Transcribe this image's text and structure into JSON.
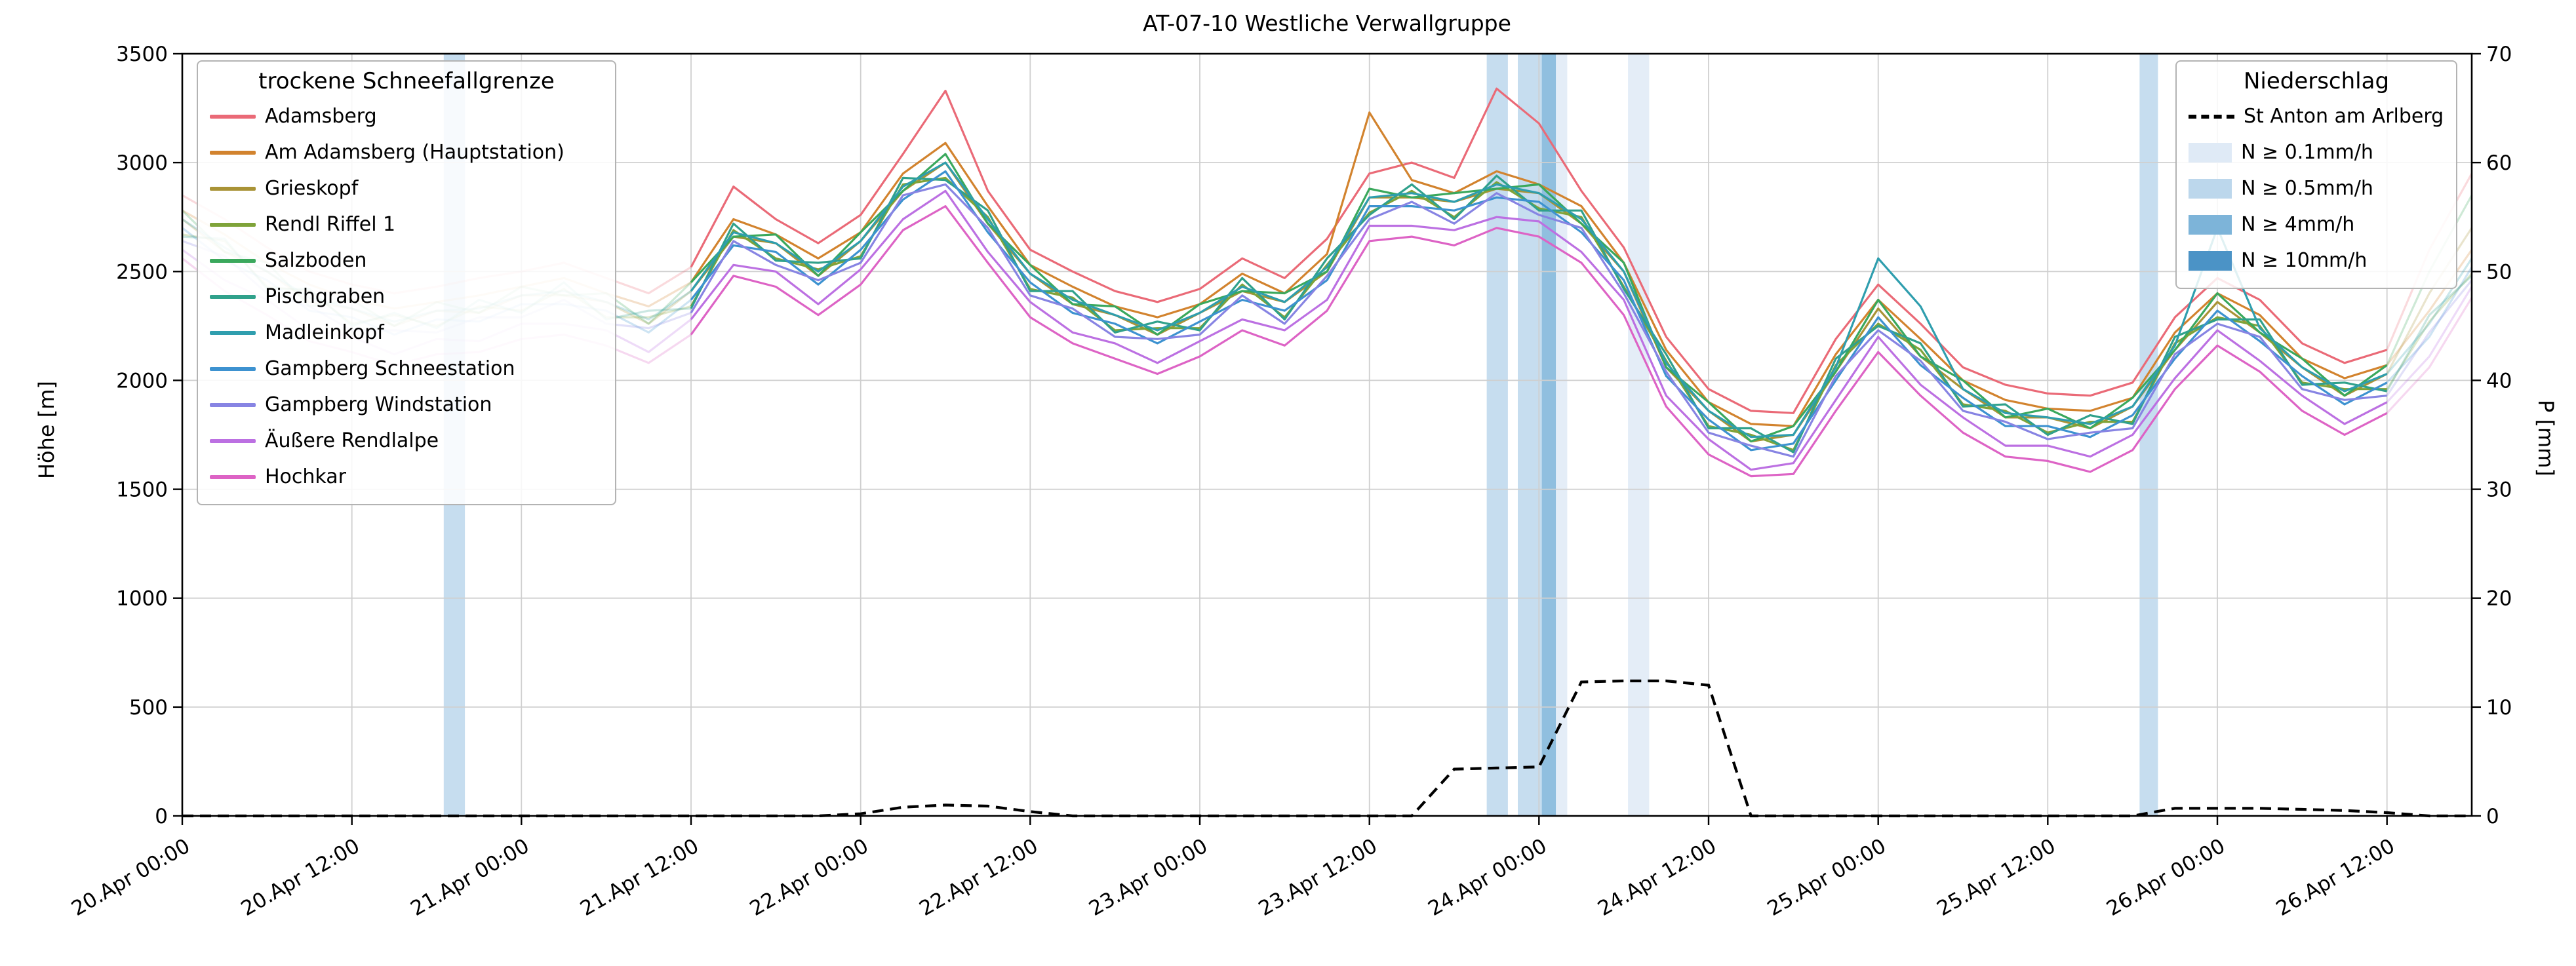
{
  "title": "AT-07-10 Westliche Verwallgruppe",
  "legend_stations": {
    "title": "trockene Schneefallgrenze"
  },
  "legend_precip": {
    "title": "Niederschlag",
    "line_label": "St Anton am Arlberg",
    "levels": [
      {
        "label": "N ≥ 0.1mm/h",
        "color": "#dfeaf6"
      },
      {
        "label": "N ≥ 0.5mm/h",
        "color": "#bcd7ec"
      },
      {
        "label": "N ≥ 4mm/h",
        "color": "#7db4d9"
      },
      {
        "label": "N ≥ 10mm/h",
        "color": "#4b93c6"
      }
    ]
  },
  "chart_data": {
    "type": "line",
    "title": "AT-07-10 Westliche Verwallgruppe",
    "x_range": [
      0,
      162
    ],
    "x_unit": "hours since 20.Apr 00:00",
    "x_tick_hours": [
      0,
      12,
      24,
      36,
      48,
      60,
      72,
      84,
      96,
      108,
      120,
      132,
      144,
      156
    ],
    "x_tick_labels": [
      "20.Apr 00:00",
      "20.Apr 12:00",
      "21.Apr 00:00",
      "21.Apr 12:00",
      "22.Apr 00:00",
      "22.Apr 12:00",
      "23.Apr 00:00",
      "23.Apr 12:00",
      "24.Apr 00:00",
      "24.Apr 12:00",
      "25.Apr 00:00",
      "25.Apr 12:00",
      "26.Apr 00:00",
      "26.Apr 12:00"
    ],
    "y_left": {
      "label": "Höhe [m]",
      "range": [
        0,
        3500
      ],
      "ticks": [
        0,
        500,
        1000,
        1500,
        2000,
        2500,
        3000,
        3500
      ]
    },
    "y_right": {
      "label": "P [mm]",
      "range": [
        0,
        70
      ],
      "ticks": [
        0,
        10,
        20,
        30,
        40,
        50,
        60,
        70
      ]
    },
    "grid": true,
    "fade_before_hour": 36,
    "fade_after_hour": 156,
    "x_hours": [
      0,
      3,
      6,
      9,
      12,
      15,
      18,
      21,
      24,
      27,
      30,
      33,
      36,
      39,
      42,
      45,
      48,
      51,
      54,
      57,
      60,
      63,
      66,
      69,
      72,
      75,
      78,
      81,
      84,
      87,
      90,
      93,
      96,
      99,
      102,
      105,
      108,
      111,
      114,
      117,
      120,
      123,
      126,
      129,
      132,
      135,
      138,
      141,
      144,
      147,
      150,
      153,
      156,
      159,
      162
    ],
    "series": [
      {
        "name": "Adamsberg",
        "color": "#ea6a77",
        "values": [
          2850,
          2740,
          2610,
          2500,
          2440,
          2400,
          2430,
          2470,
          2500,
          2540,
          2470,
          2400,
          2520,
          2890,
          2740,
          2630,
          2760,
          3040,
          3330,
          2870,
          2600,
          2500,
          2410,
          2360,
          2420,
          2560,
          2470,
          2650,
          2950,
          3000,
          2930,
          3340,
          3180,
          2870,
          2610,
          2200,
          1960,
          1860,
          1850,
          2190,
          2440,
          2260,
          2060,
          1980,
          1940,
          1930,
          1990,
          2290,
          2470,
          2370,
          2170,
          2080,
          2140,
          2600,
          2950
        ]
      },
      {
        "name": "Am Adamsberg (Hauptstation)",
        "color": "#d2832e",
        "values": [
          2780,
          2670,
          2540,
          2440,
          2370,
          2330,
          2360,
          2390,
          2430,
          2470,
          2400,
          2340,
          2450,
          2740,
          2670,
          2560,
          2680,
          2950,
          3090,
          2800,
          2530,
          2430,
          2340,
          2290,
          2350,
          2490,
          2400,
          2580,
          3230,
          2920,
          2860,
          2960,
          2900,
          2800,
          2540,
          2140,
          1900,
          1800,
          1790,
          2120,
          2370,
          2190,
          2000,
          1910,
          1870,
          1860,
          1920,
          2220,
          2400,
          2300,
          2100,
          2010,
          2070,
          2320,
          2600
        ]
      },
      {
        "name": "Grieskopf",
        "color": "#a99336",
        "values": [
          2740,
          2590,
          2500,
          2360,
          2330,
          2250,
          2320,
          2310,
          2390,
          2390,
          2360,
          2260,
          2410,
          2660,
          2630,
          2480,
          2640,
          2870,
          3000,
          2720,
          2490,
          2350,
          2300,
          2210,
          2310,
          2410,
          2360,
          2500,
          2840,
          2840,
          2820,
          2880,
          2860,
          2720,
          2500,
          2060,
          1860,
          1720,
          1750,
          2040,
          2330,
          2110,
          1960,
          1830,
          1830,
          1780,
          1880,
          2140,
          2360,
          2220,
          2060,
          1930,
          2030,
          2400,
          2700
        ]
      },
      {
        "name": "Rendl Riffel 1",
        "color": "#7fa339",
        "values": [
          2670,
          2640,
          2430,
          2410,
          2260,
          2300,
          2250,
          2340,
          2320,
          2420,
          2290,
          2290,
          2340,
          2690,
          2560,
          2510,
          2570,
          2900,
          2930,
          2750,
          2420,
          2380,
          2230,
          2240,
          2240,
          2440,
          2290,
          2530,
          2770,
          2870,
          2750,
          2910,
          2790,
          2750,
          2430,
          2090,
          1790,
          1750,
          1680,
          2070,
          2260,
          2140,
          1890,
          1860,
          1760,
          1810,
          1810,
          2170,
          2290,
          2250,
          1990,
          1960,
          1960,
          2270,
          2490
        ]
      },
      {
        "name": "Salzboden",
        "color": "#3aa85c",
        "values": [
          2780,
          2590,
          2540,
          2340,
          2370,
          2250,
          2360,
          2310,
          2430,
          2390,
          2400,
          2260,
          2450,
          2660,
          2670,
          2480,
          2680,
          2870,
          3040,
          2720,
          2530,
          2350,
          2340,
          2210,
          2350,
          2410,
          2400,
          2500,
          2880,
          2840,
          2860,
          2880,
          2900,
          2720,
          2540,
          2060,
          1900,
          1720,
          1790,
          2040,
          2370,
          2110,
          2000,
          1830,
          1870,
          1780,
          1920,
          2140,
          2400,
          2220,
          2100,
          1930,
          2070,
          2500,
          2850
        ]
      },
      {
        "name": "Pischgraben",
        "color": "#30a18b",
        "values": [
          2660,
          2650,
          2420,
          2420,
          2250,
          2310,
          2240,
          2370,
          2310,
          2450,
          2280,
          2320,
          2330,
          2720,
          2550,
          2540,
          2560,
          2930,
          2920,
          2780,
          2410,
          2410,
          2220,
          2270,
          2230,
          2470,
          2280,
          2560,
          2760,
          2900,
          2740,
          2940,
          2780,
          2780,
          2420,
          2120,
          1780,
          1780,
          1670,
          2100,
          2250,
          2170,
          1880,
          1890,
          1750,
          1840,
          1800,
          2200,
          2280,
          2280,
          1980,
          1990,
          1950,
          2300,
          2480
        ]
      },
      {
        "name": "Madleinkopf",
        "color": "#2f9eae",
        "values": [
          2740,
          2610,
          2500,
          2380,
          2330,
          2270,
          2320,
          2330,
          2390,
          2410,
          2360,
          2280,
          2410,
          2680,
          2630,
          2500,
          2640,
          2890,
          3000,
          2740,
          2490,
          2370,
          2300,
          2230,
          2310,
          2430,
          2360,
          2520,
          2840,
          2860,
          2820,
          2900,
          2860,
          2740,
          2500,
          2080,
          1860,
          1740,
          1750,
          2060,
          2560,
          2340,
          1960,
          1850,
          1830,
          1800,
          1880,
          2160,
          2700,
          2240,
          2060,
          1950,
          2030,
          2260,
          2560
        ]
      },
      {
        "name": "Gampberg Schneestation",
        "color": "#3d92d0",
        "values": [
          2700,
          2550,
          2460,
          2320,
          2290,
          2210,
          2280,
          2270,
          2350,
          2350,
          2320,
          2220,
          2370,
          2620,
          2590,
          2440,
          2600,
          2830,
          2960,
          2680,
          2450,
          2310,
          2260,
          2170,
          2270,
          2370,
          2320,
          2460,
          2800,
          2800,
          2780,
          2840,
          2820,
          2680,
          2460,
          2020,
          1820,
          1680,
          1710,
          2000,
          2290,
          2070,
          1920,
          1790,
          1790,
          1740,
          1840,
          2100,
          2320,
          2180,
          2020,
          1890,
          1990,
          2200,
          2520
        ]
      },
      {
        "name": "Gampberg Windstation",
        "color": "#8784e3",
        "values": [
          2640,
          2570,
          2400,
          2340,
          2230,
          2230,
          2220,
          2290,
          2290,
          2370,
          2260,
          2240,
          2310,
          2640,
          2530,
          2460,
          2540,
          2850,
          2900,
          2700,
          2390,
          2330,
          2200,
          2190,
          2210,
          2390,
          2260,
          2480,
          2740,
          2820,
          2720,
          2860,
          2760,
          2700,
          2400,
          2040,
          1760,
          1700,
          1650,
          2020,
          2230,
          2090,
          1860,
          1810,
          1730,
          1760,
          1780,
          2120,
          2260,
          2200,
          1960,
          1910,
          1930,
          2220,
          2460
        ]
      },
      {
        "name": "Äußere Rendlalpe",
        "color": "#bc70e2",
        "values": [
          2600,
          2460,
          2370,
          2230,
          2200,
          2120,
          2190,
          2180,
          2260,
          2260,
          2230,
          2130,
          2280,
          2530,
          2500,
          2350,
          2510,
          2740,
          2870,
          2590,
          2360,
          2220,
          2170,
          2080,
          2180,
          2280,
          2230,
          2370,
          2710,
          2710,
          2690,
          2750,
          2730,
          2590,
          2370,
          1930,
          1730,
          1590,
          1620,
          1910,
          2200,
          1980,
          1830,
          1700,
          1700,
          1650,
          1750,
          2010,
          2230,
          2090,
          1930,
          1800,
          1900,
          2110,
          2430
        ]
      },
      {
        "name": "Hochkar",
        "color": "#dd63c5",
        "values": [
          2560,
          2410,
          2300,
          2180,
          2130,
          2070,
          2120,
          2130,
          2190,
          2210,
          2160,
          2080,
          2210,
          2480,
          2430,
          2300,
          2440,
          2690,
          2800,
          2540,
          2290,
          2170,
          2100,
          2030,
          2110,
          2230,
          2160,
          2320,
          2640,
          2660,
          2620,
          2700,
          2660,
          2540,
          2300,
          1880,
          1660,
          1560,
          1570,
          1860,
          2130,
          1930,
          1760,
          1650,
          1630,
          1580,
          1680,
          1960,
          2160,
          2040,
          1860,
          1750,
          1850,
          2060,
          2380
        ]
      }
    ],
    "precipitation": {
      "name": "St Anton am Arlberg",
      "color": "#000000",
      "dashed": true,
      "axis": "right",
      "values": [
        0,
        0,
        0,
        0,
        0,
        0,
        0,
        0,
        0,
        0,
        0,
        0,
        0,
        0,
        0,
        0,
        0.2,
        0.8,
        1.0,
        0.9,
        0.4,
        0,
        0,
        0,
        0,
        0,
        0,
        0,
        0,
        0,
        4.3,
        4.4,
        4.5,
        12.3,
        12.4,
        12.4,
        12.0,
        0,
        0,
        0,
        0,
        0,
        0,
        0,
        0,
        0,
        0,
        0.7,
        0.7,
        0.7,
        0.6,
        0.5,
        0.3,
        0,
        0
      ]
    },
    "precip_bands": [
      {
        "start_h": 18.5,
        "end_h": 20.0,
        "level": "N ≥ 0.5mm/h"
      },
      {
        "start_h": 92.3,
        "end_h": 93.8,
        "level": "N ≥ 0.5mm/h"
      },
      {
        "start_h": 94.5,
        "end_h": 96.2,
        "level": "N ≥ 0.5mm/h"
      },
      {
        "start_h": 96.2,
        "end_h": 97.2,
        "level": "N ≥ 4mm/h"
      },
      {
        "start_h": 97.2,
        "end_h": 98.0,
        "level": "N ≥ 0.1mm/h"
      },
      {
        "start_h": 102.3,
        "end_h": 103.8,
        "level": "N ≥ 0.1mm/h"
      },
      {
        "start_h": 138.5,
        "end_h": 139.8,
        "level": "N ≥ 0.5mm/h"
      }
    ]
  }
}
